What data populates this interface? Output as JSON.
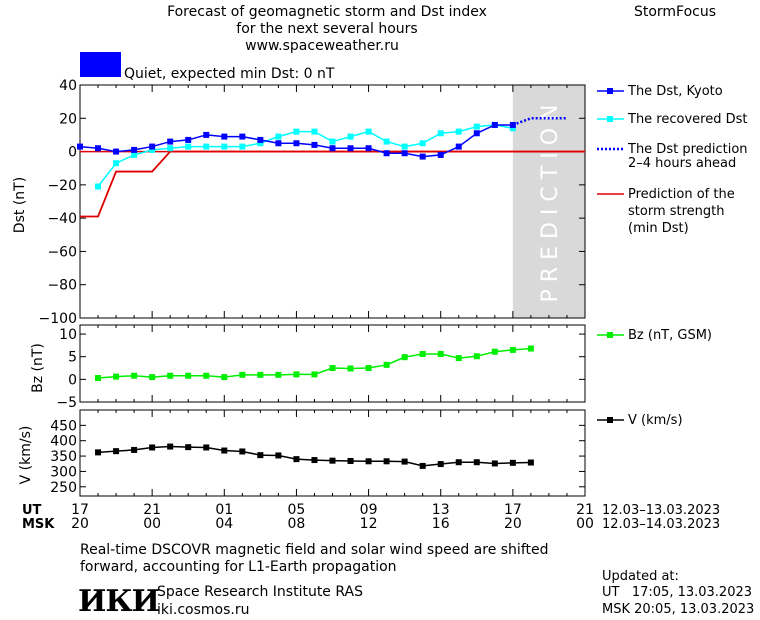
{
  "header": {
    "title_line1": "Forecast of geomagnetic storm and Dst index",
    "title_line2": "for the next several hours",
    "url": "www.spaceweather.ru",
    "brand": "StormFocus",
    "status_text": "Quiet, expected min Dst: 0 nT",
    "status_color": "#0000ff"
  },
  "legend": {
    "dst_kyoto": "The Dst, Kyoto",
    "recovered_dst": "The recovered Dst",
    "dst_prediction_line1": "The Dst prediction",
    "dst_prediction_line2": "2–4 hours ahead",
    "storm_line1": "Prediction of the",
    "storm_line2": "storm strength",
    "storm_line3": "(min Dst)",
    "bz": "Bz (nT, GSM)",
    "v": "V (km/s)"
  },
  "prediction_label": "PREDICTION",
  "time_axis": {
    "ut_label": "UT",
    "msk_label": "MSK",
    "ut_ticks": [
      "17",
      "21",
      "01",
      "05",
      "09",
      "13",
      "17",
      "21"
    ],
    "msk_ticks": [
      "20",
      "00",
      "04",
      "08",
      "12",
      "16",
      "20",
      "00"
    ],
    "ut_range": "12.03–13.03.2023",
    "msk_range": "12.03–14.03.2023"
  },
  "footer": {
    "note_line1": "Real-time DSCOVR magnetic field and solar wind speed are shifted",
    "note_line2": "forward, accounting for L1-Earth propagation",
    "logo_text": "ИКИ",
    "institute": "Space Research Institute RAS",
    "institute_url": "iki.cosmos.ru",
    "updated_label": "Updated at:",
    "updated_ut": "UT   17:05, 13.03.2023",
    "updated_msk": "MSK 20:05, 13.03.2023"
  },
  "colors": {
    "dst_kyoto": "#0000ff",
    "recovered_dst": "#00ffff",
    "prediction": "#0000ff",
    "storm": "#e00000",
    "bz": "#00ee00",
    "v": "#000000",
    "prediction_zone": "#d9d9d9"
  },
  "chart_data": [
    {
      "type": "line",
      "ylabel": "Dst (nT)",
      "ylim": [
        -100,
        40
      ],
      "yticks": [
        40,
        20,
        0,
        -20,
        -40,
        -60,
        -80,
        -100
      ],
      "xlim_hours": [
        0,
        28
      ],
      "prediction_zone_hours": [
        24,
        28
      ],
      "series": [
        {
          "name": "The Dst, Kyoto",
          "x": [
            0,
            1,
            2,
            3,
            4,
            5,
            6,
            7,
            8,
            9,
            10,
            11,
            12,
            13,
            14,
            15,
            16,
            17,
            18,
            19,
            20,
            21,
            22,
            23,
            24
          ],
          "values": [
            3,
            2,
            0,
            1,
            3,
            6,
            7,
            10,
            9,
            9,
            7,
            5,
            5,
            4,
            2,
            2,
            2,
            -1,
            -1,
            -3,
            -2,
            3,
            11,
            16,
            16
          ]
        },
        {
          "name": "The recovered Dst",
          "x": [
            1,
            2,
            3,
            4,
            5,
            6,
            7,
            8,
            9,
            10,
            11,
            12,
            13,
            14,
            15,
            16,
            17,
            18,
            19,
            20,
            21,
            22,
            23,
            24
          ],
          "values": [
            -21,
            -7,
            -2,
            1,
            2,
            3,
            3,
            3,
            3,
            5,
            9,
            12,
            12,
            6,
            9,
            12,
            6,
            3,
            5,
            11,
            12,
            15,
            16,
            14
          ]
        },
        {
          "name": "The Dst prediction",
          "x": [
            24,
            25,
            26,
            27
          ],
          "values": [
            16,
            20,
            20,
            20
          ]
        },
        {
          "name": "Prediction of the storm strength",
          "x": [
            0,
            1,
            2,
            4,
            5,
            28
          ],
          "values": [
            -39,
            -39,
            -12,
            -12,
            0,
            0
          ]
        }
      ]
    },
    {
      "type": "line",
      "ylabel": "Bz (nT)",
      "ylim": [
        -5,
        12
      ],
      "yticks": [
        10,
        5,
        0,
        -5
      ],
      "series": [
        {
          "name": "Bz (nT, GSM)",
          "x": [
            1,
            2,
            3,
            4,
            5,
            6,
            7,
            8,
            9,
            10,
            11,
            12,
            13,
            14,
            15,
            16,
            17,
            18,
            19,
            20,
            21,
            22,
            23,
            24,
            25
          ],
          "values": [
            0.3,
            0.6,
            0.8,
            0.5,
            0.8,
            0.8,
            0.8,
            0.5,
            1.0,
            1.0,
            1.0,
            1.1,
            1.1,
            2.5,
            2.4,
            2.5,
            3.2,
            4.9,
            5.6,
            5.6,
            4.7,
            5.1,
            6.1,
            6.5,
            6.8
          ]
        }
      ]
    },
    {
      "type": "line",
      "ylabel": "V (km/s)",
      "ylim": [
        220,
        500
      ],
      "yticks": [
        450,
        400,
        350,
        300,
        250
      ],
      "series": [
        {
          "name": "V (km/s)",
          "x": [
            1,
            2,
            3,
            4,
            5,
            6,
            7,
            8,
            9,
            10,
            11,
            12,
            13,
            14,
            15,
            16,
            17,
            18,
            19,
            20,
            21,
            22,
            23,
            24,
            25
          ],
          "values": [
            362,
            366,
            370,
            378,
            381,
            379,
            378,
            368,
            365,
            353,
            352,
            340,
            337,
            335,
            334,
            333,
            333,
            332,
            318,
            324,
            330,
            330,
            326,
            328,
            329
          ]
        }
      ]
    }
  ]
}
